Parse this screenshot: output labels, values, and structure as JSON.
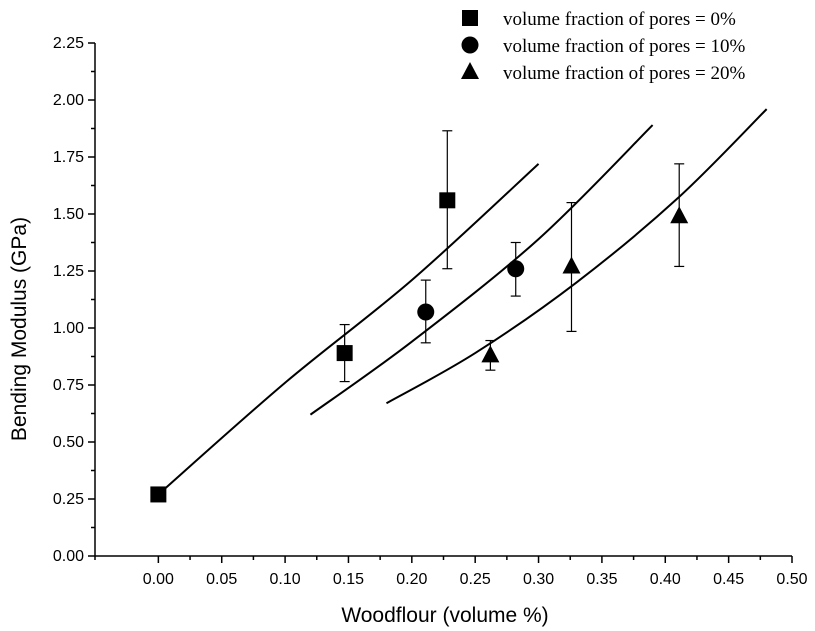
{
  "chart_data": {
    "type": "scatter",
    "title": "",
    "xlabel": "Woodflour (volume %)",
    "ylabel": "Bending Modulus (GPa)",
    "xlim": [
      -0.05,
      0.5
    ],
    "ylim": [
      0.0,
      2.25
    ],
    "x_ticks": [
      "0.00",
      "0.05",
      "0.10",
      "0.15",
      "0.20",
      "0.25",
      "0.30",
      "0.35",
      "0.40",
      "0.45",
      "0.50"
    ],
    "y_ticks": [
      "0.00",
      "0.25",
      "0.50",
      "0.75",
      "1.00",
      "1.25",
      "1.50",
      "1.75",
      "2.00",
      "2.25"
    ],
    "legend_position": "top-right",
    "grid": false,
    "series": [
      {
        "name": "volume fraction of pores = 0%",
        "marker": "square",
        "points": [
          {
            "x": 0.0,
            "y": 0.27,
            "err_low": null,
            "err_high": null
          },
          {
            "x": 0.147,
            "y": 0.89,
            "err_low": 0.765,
            "err_high": 1.015
          },
          {
            "x": 0.228,
            "y": 1.56,
            "err_low": 1.26,
            "err_high": 1.865
          }
        ],
        "fit_curve": [
          {
            "x": 0.0,
            "y": 0.27
          },
          {
            "x": 0.1,
            "y": 0.76
          },
          {
            "x": 0.2,
            "y": 1.21
          },
          {
            "x": 0.3,
            "y": 1.72
          }
        ]
      },
      {
        "name": "volume fraction of pores = 10%",
        "marker": "circle",
        "points": [
          {
            "x": 0.211,
            "y": 1.07,
            "err_low": 0.935,
            "err_high": 1.21
          },
          {
            "x": 0.282,
            "y": 1.26,
            "err_low": 1.14,
            "err_high": 1.375
          }
        ],
        "fit_curve": [
          {
            "x": 0.12,
            "y": 0.62
          },
          {
            "x": 0.2,
            "y": 0.94
          },
          {
            "x": 0.3,
            "y": 1.39
          },
          {
            "x": 0.39,
            "y": 1.89
          }
        ]
      },
      {
        "name": "volume fraction of pores = 20%",
        "marker": "triangle",
        "points": [
          {
            "x": 0.262,
            "y": 0.88,
            "err_low": 0.815,
            "err_high": 0.945
          },
          {
            "x": 0.326,
            "y": 1.27,
            "err_low": 0.985,
            "err_high": 1.55
          },
          {
            "x": 0.411,
            "y": 1.49,
            "err_low": 1.27,
            "err_high": 1.72
          }
        ],
        "fit_curve": [
          {
            "x": 0.18,
            "y": 0.67
          },
          {
            "x": 0.25,
            "y": 0.89
          },
          {
            "x": 0.33,
            "y": 1.2
          },
          {
            "x": 0.41,
            "y": 1.57
          },
          {
            "x": 0.48,
            "y": 1.96
          }
        ]
      }
    ]
  }
}
